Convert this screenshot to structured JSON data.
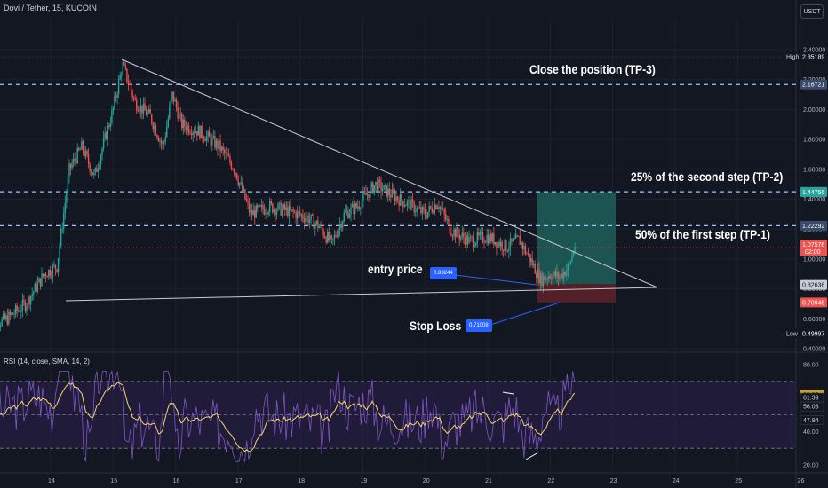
{
  "header": {
    "symbol": "Dovi / Tether, 15, KUCOIN",
    "currency": "USDT"
  },
  "annotations": {
    "tp3": "Close the position (TP-3)",
    "tp2": "25% of the second step (TP-2)",
    "tp1": "50% of the first step (TP-1)",
    "entry": "entry price",
    "entry_value": "0.83244",
    "stop": "Stop Loss",
    "stop_value": "0.71008"
  },
  "rsi": {
    "label": "RSI (14, close, SMA, 14, 2)"
  },
  "colors": {
    "background": "#131722",
    "grid": "#1e222d",
    "candle_up": "#26a69a",
    "candle_down": "#ef5350",
    "dashed_line": "#9ec3ff",
    "trendline": "#c8cbd3",
    "rsi_line": "#7e57c2",
    "rsi_ma": "#f5d76e",
    "rsi_band": "#2a1f4a",
    "profit_zone": "#1d5b57",
    "loss_zone": "#5c2129",
    "tag": "#2962ff"
  },
  "chart_data": {
    "type": "candlestick",
    "title": "Dovi / Tether, 15, KUCOIN",
    "x_ticks": [
      "14",
      "15",
      "16",
      "17",
      "18",
      "19",
      "20",
      "21",
      "22",
      "23",
      "24",
      "25",
      "26"
    ],
    "y_ticks": [
      "2.40000",
      "2.20000",
      "2.00000",
      "1.80000",
      "1.60000",
      "1.40000",
      "1.20000",
      "1.00000",
      "0.80000",
      "0.60000",
      "0.40000"
    ],
    "ylim": [
      0.4,
      2.4
    ],
    "price_badges": [
      {
        "label": "High",
        "value": "2.35189",
        "price": 2.35189,
        "color": "#131722"
      },
      {
        "label": "",
        "value": "2.16721",
        "price": 2.16721,
        "color": "#3a4a6b"
      },
      {
        "label": "",
        "value": "1.44985",
        "price": 1.44985,
        "color": "#3a4a6b"
      },
      {
        "label": "",
        "value": "1.44756",
        "price": 1.44756,
        "color": "#26a69a"
      },
      {
        "label": "",
        "value": "1.22292",
        "price": 1.22292,
        "color": "#3a4a6b"
      },
      {
        "label": "",
        "value": "1.07576",
        "sub": "02:00",
        "price": 1.07576,
        "color": "#ef5350"
      },
      {
        "label": "",
        "value": "0.82636",
        "price": 0.82636,
        "color": "#c8cbd3"
      },
      {
        "label": "",
        "value": "0.70945",
        "price": 0.70945,
        "color": "#ef5350"
      },
      {
        "label": "Low",
        "value": "0.49997",
        "price": 0.49997,
        "color": "#131722"
      }
    ],
    "levels": [
      {
        "name": "TP-3",
        "price": 2.16721
      },
      {
        "name": "TP-2",
        "price": 1.44985
      },
      {
        "name": "TP-1",
        "price": 1.22292
      },
      {
        "name": "entry",
        "price": 0.83244
      },
      {
        "name": "stop",
        "price": 0.71008
      }
    ],
    "price_path": [
      [
        13.0,
        0.55
      ],
      [
        13.3,
        0.6
      ],
      [
        13.6,
        0.7
      ],
      [
        13.9,
        0.9
      ],
      [
        14.1,
        0.95
      ],
      [
        14.3,
        1.6
      ],
      [
        14.5,
        1.75
      ],
      [
        14.7,
        1.55
      ],
      [
        14.9,
        1.85
      ],
      [
        15.0,
        2.0
      ],
      [
        15.15,
        2.3
      ],
      [
        15.35,
        2.05
      ],
      [
        15.6,
        1.95
      ],
      [
        15.8,
        1.75
      ],
      [
        15.95,
        2.1
      ],
      [
        16.1,
        1.9
      ],
      [
        16.4,
        1.85
      ],
      [
        16.7,
        1.75
      ],
      [
        16.95,
        1.6
      ],
      [
        17.2,
        1.3
      ],
      [
        17.5,
        1.35
      ],
      [
        17.8,
        1.32
      ],
      [
        18.1,
        1.28
      ],
      [
        18.3,
        1.22
      ],
      [
        18.5,
        1.1
      ],
      [
        18.7,
        1.3
      ],
      [
        18.9,
        1.35
      ],
      [
        19.2,
        1.5
      ],
      [
        19.5,
        1.42
      ],
      [
        19.8,
        1.35
      ],
      [
        20.0,
        1.3
      ],
      [
        20.2,
        1.38
      ],
      [
        20.4,
        1.2
      ],
      [
        20.7,
        1.12
      ],
      [
        21.0,
        1.15
      ],
      [
        21.3,
        1.08
      ],
      [
        21.5,
        1.13
      ],
      [
        21.7,
        0.98
      ],
      [
        21.85,
        0.86
      ],
      [
        22.0,
        0.9
      ],
      [
        22.15,
        0.88
      ],
      [
        22.3,
        0.95
      ],
      [
        22.4,
        1.1
      ]
    ],
    "rsi": {
      "ylim": [
        20,
        80
      ],
      "y_ticks": [
        "80.00",
        "60.00",
        "40.00",
        "20.00"
      ],
      "bands": [
        70,
        30
      ],
      "values": {
        "rsi": "61.39",
        "ma": "56.03",
        "ref": "47.94",
        "top": "63.33"
      }
    }
  }
}
